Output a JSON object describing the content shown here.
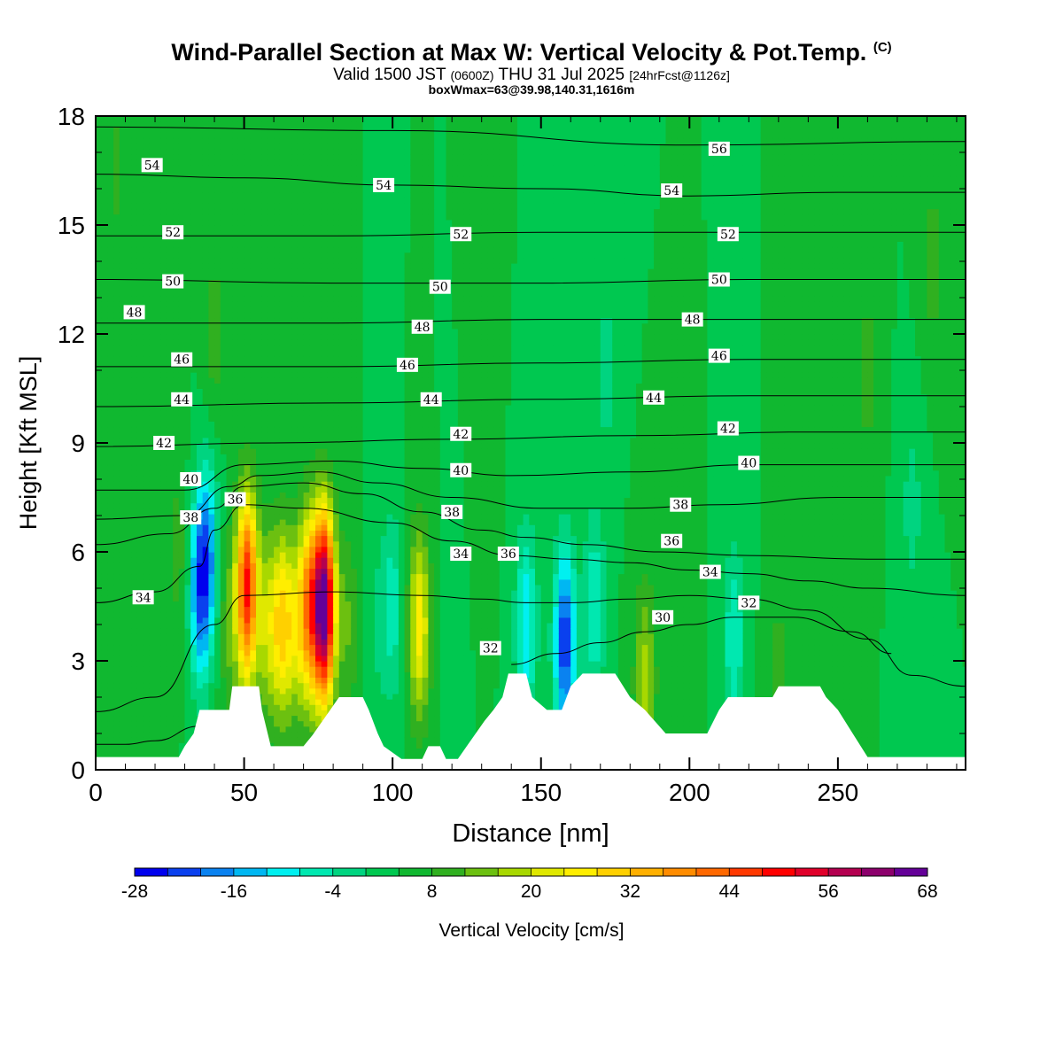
{
  "header": {
    "title": "Wind-Parallel Section at Max W: Vertical Velocity & Pot.Temp.",
    "copyright": "(C)",
    "valid_prefix": "Valid 1500 JST",
    "utc": "(0600Z)",
    "valid_date": "THU 31 Jul 2025",
    "forecast": "[24hrFcst@1126z]",
    "box_info": "boxWmax=63@39.98,140.31,1616m"
  },
  "chart_data": {
    "type": "heatmap",
    "title": "Wind-Parallel Section at Max W: Vertical Velocity & Pot.Temp.",
    "xlabel": "Distance [nm]",
    "ylabel": "Height [Kft MSL]",
    "xlim": [
      0,
      293
    ],
    "ylim": [
      0,
      18
    ],
    "x_ticks": [
      0,
      50,
      100,
      150,
      200,
      250
    ],
    "y_ticks": [
      0,
      3,
      6,
      9,
      12,
      15,
      18
    ],
    "colorbar": {
      "label": "Vertical Velocity [cm/s]",
      "tick_labels": [
        "-28",
        "-16",
        "-4",
        "8",
        "20",
        "32",
        "44",
        "56",
        "68"
      ],
      "levels": [
        -28,
        -24,
        -20,
        -16,
        -12,
        -8,
        -4,
        0,
        4,
        8,
        12,
        16,
        20,
        24,
        28,
        32,
        36,
        40,
        44,
        48,
        52,
        56,
        60,
        64,
        68
      ],
      "colors": [
        "#0000ee",
        "#0a40ee",
        "#0a82f0",
        "#00b7f2",
        "#00f0f0",
        "#00e8b0",
        "#00d480",
        "#00c850",
        "#10b830",
        "#30b020",
        "#6cc010",
        "#a8d800",
        "#e0e800",
        "#ffee00",
        "#ffd000",
        "#ffb000",
        "#ff8c00",
        "#ff6800",
        "#ff3800",
        "#ff0000",
        "#e0002a",
        "#b40050",
        "#8c006c",
        "#640098"
      ]
    },
    "w_cells": [
      {
        "x": 7,
        "z": 16.5,
        "w": 5
      },
      {
        "x": 20,
        "z": 10.0,
        "w": 4
      },
      {
        "x": 28,
        "z": 6.0,
        "w": 6
      },
      {
        "x": 38,
        "z": 6.0,
        "w": -16
      },
      {
        "x": 35,
        "z": 5.0,
        "w": -22
      },
      {
        "x": 40,
        "z": 12.0,
        "w": 6
      },
      {
        "x": 45,
        "z": 4.0,
        "w": 8
      },
      {
        "x": 51,
        "z": 5.0,
        "w": 45
      },
      {
        "x": 58,
        "z": 4.0,
        "w": 14
      },
      {
        "x": 63,
        "z": 4.0,
        "w": 24
      },
      {
        "x": 68,
        "z": 4.0,
        "w": 12
      },
      {
        "x": 72,
        "z": 4.5,
        "w": 30
      },
      {
        "x": 77,
        "z": 4.5,
        "w": 63
      },
      {
        "x": 85,
        "z": 4.0,
        "w": 8
      },
      {
        "x": 95,
        "z": 4.0,
        "w": -4
      },
      {
        "x": 100,
        "z": 4.5,
        "w": -10
      },
      {
        "x": 109,
        "z": 4.0,
        "w": 22
      },
      {
        "x": 120,
        "z": 4.5,
        "w": -4
      },
      {
        "x": 130,
        "z": 8.0,
        "w": 4
      },
      {
        "x": 145,
        "z": 4.0,
        "w": -16
      },
      {
        "x": 158,
        "z": 3.5,
        "w": -28
      },
      {
        "x": 168,
        "z": 4.5,
        "w": -12
      },
      {
        "x": 172,
        "z": 11.0,
        "w": -6
      },
      {
        "x": 185,
        "z": 2.5,
        "w": 14
      },
      {
        "x": 198,
        "z": 2.8,
        "w": 4
      },
      {
        "x": 215,
        "z": 3.6,
        "w": -12
      },
      {
        "x": 230,
        "z": 2.5,
        "w": 6
      },
      {
        "x": 250,
        "z": 2.5,
        "w": 2
      },
      {
        "x": 275,
        "z": 7.2,
        "w": -6
      },
      {
        "x": 282,
        "z": 14.0,
        "w": 6
      },
      {
        "x": 260,
        "z": 11.0,
        "w": 6
      }
    ],
    "terrain": [
      [
        0,
        0.35
      ],
      [
        28,
        0.35
      ],
      [
        30,
        0.65
      ],
      [
        33,
        1.0
      ],
      [
        35,
        1.65
      ],
      [
        45,
        1.65
      ],
      [
        46,
        2.3
      ],
      [
        55,
        2.3
      ],
      [
        56,
        1.65
      ],
      [
        59,
        0.65
      ],
      [
        70,
        0.65
      ],
      [
        73,
        0.95
      ],
      [
        76,
        1.3
      ],
      [
        79,
        1.65
      ],
      [
        82,
        2.0
      ],
      [
        90,
        2.0
      ],
      [
        92,
        1.65
      ],
      [
        95,
        1.0
      ],
      [
        97,
        0.65
      ],
      [
        103,
        0.3
      ],
      [
        110,
        0.3
      ],
      [
        112,
        0.65
      ],
      [
        116,
        0.65
      ],
      [
        118,
        0.3
      ],
      [
        122,
        0.3
      ],
      [
        125,
        0.65
      ],
      [
        128,
        1.0
      ],
      [
        131,
        1.35
      ],
      [
        134,
        1.65
      ],
      [
        137,
        2.0
      ],
      [
        139,
        2.65
      ],
      [
        145,
        2.65
      ],
      [
        147,
        2.0
      ],
      [
        152,
        1.65
      ],
      [
        157,
        1.65
      ],
      [
        160,
        2.3
      ],
      [
        164,
        2.65
      ],
      [
        175,
        2.65
      ],
      [
        180,
        2.0
      ],
      [
        185,
        1.65
      ],
      [
        192,
        1.0
      ],
      [
        206,
        1.0
      ],
      [
        210,
        1.65
      ],
      [
        213,
        2.0
      ],
      [
        228,
        2.0
      ],
      [
        230,
        2.3
      ],
      [
        244,
        2.3
      ],
      [
        246,
        2.0
      ],
      [
        250,
        1.65
      ],
      [
        255,
        1.0
      ],
      [
        260,
        0.35
      ],
      [
        293,
        0.35
      ]
    ],
    "theta_contours": [
      {
        "value": 30,
        "points": [
          [
            0,
            0.7
          ],
          [
            10,
            0.7
          ],
          [
            20,
            0.8
          ],
          [
            35,
            1.2
          ]
        ]
      },
      {
        "value": 30,
        "points": [
          [
            140,
            2.9
          ],
          [
            155,
            3.2
          ],
          [
            170,
            3.5
          ],
          [
            185,
            3.8
          ],
          [
            200,
            4.0
          ],
          [
            215,
            4.2
          ],
          [
            235,
            4.2
          ],
          [
            255,
            3.8
          ],
          [
            268,
            3.2
          ]
        ]
      },
      {
        "value": 32,
        "points": [
          [
            0,
            1.6
          ],
          [
            20,
            2.0
          ],
          [
            40,
            4.0
          ],
          [
            50,
            4.8
          ],
          [
            80,
            4.9
          ],
          [
            110,
            4.8
          ],
          [
            130,
            4.7
          ],
          [
            145,
            4.6
          ],
          [
            160,
            4.6
          ],
          [
            180,
            4.7
          ],
          [
            200,
            4.8
          ],
          [
            220,
            4.7
          ],
          [
            240,
            4.4
          ],
          [
            260,
            3.6
          ],
          [
            275,
            2.6
          ],
          [
            293,
            2.3
          ]
        ]
      },
      {
        "value": 34,
        "points": [
          [
            0,
            4.6
          ],
          [
            20,
            4.9
          ],
          [
            35,
            5.6
          ],
          [
            40,
            6.6
          ],
          [
            50,
            7.3
          ],
          [
            70,
            7.2
          ],
          [
            100,
            6.8
          ],
          [
            120,
            6.3
          ],
          [
            140,
            5.9
          ],
          [
            160,
            5.8
          ],
          [
            180,
            5.7
          ],
          [
            200,
            5.5
          ],
          [
            220,
            5.4
          ],
          [
            240,
            5.2
          ],
          [
            260,
            5.0
          ],
          [
            293,
            4.8
          ]
        ]
      },
      {
        "value": 36,
        "points": [
          [
            0,
            6.2
          ],
          [
            25,
            6.5
          ],
          [
            40,
            7.2
          ],
          [
            50,
            7.8
          ],
          [
            70,
            7.9
          ],
          [
            90,
            7.6
          ],
          [
            110,
            7.1
          ],
          [
            130,
            6.6
          ],
          [
            145,
            6.4
          ],
          [
            165,
            6.2
          ],
          [
            190,
            6.0
          ],
          [
            220,
            5.9
          ],
          [
            260,
            5.8
          ],
          [
            293,
            5.8
          ]
        ]
      },
      {
        "value": 38,
        "points": [
          [
            0,
            6.9
          ],
          [
            30,
            7.0
          ],
          [
            45,
            7.8
          ],
          [
            55,
            8.1
          ],
          [
            75,
            8.2
          ],
          [
            95,
            7.9
          ],
          [
            120,
            7.5
          ],
          [
            150,
            7.2
          ],
          [
            180,
            7.2
          ],
          [
            210,
            7.3
          ],
          [
            250,
            7.5
          ],
          [
            293,
            7.5
          ]
        ]
      },
      {
        "value": 40,
        "points": [
          [
            0,
            7.7
          ],
          [
            30,
            7.7
          ],
          [
            50,
            8.4
          ],
          [
            80,
            8.5
          ],
          [
            110,
            8.3
          ],
          [
            140,
            8.1
          ],
          [
            180,
            8.2
          ],
          [
            220,
            8.4
          ],
          [
            260,
            8.4
          ],
          [
            293,
            8.4
          ]
        ]
      },
      {
        "value": 42,
        "points": [
          [
            0,
            8.9
          ],
          [
            60,
            9.0
          ],
          [
            120,
            9.1
          ],
          [
            180,
            9.2
          ],
          [
            240,
            9.3
          ],
          [
            293,
            9.3
          ]
        ]
      },
      {
        "value": 44,
        "points": [
          [
            0,
            10.0
          ],
          [
            80,
            10.1
          ],
          [
            150,
            10.2
          ],
          [
            220,
            10.3
          ],
          [
            293,
            10.3
          ]
        ]
      },
      {
        "value": 46,
        "points": [
          [
            0,
            11.1
          ],
          [
            80,
            11.1
          ],
          [
            150,
            11.2
          ],
          [
            220,
            11.3
          ],
          [
            293,
            11.3
          ]
        ]
      },
      {
        "value": 48,
        "points": [
          [
            0,
            12.3
          ],
          [
            80,
            12.3
          ],
          [
            150,
            12.4
          ],
          [
            220,
            12.4
          ],
          [
            293,
            12.4
          ]
        ]
      },
      {
        "value": 50,
        "points": [
          [
            0,
            13.5
          ],
          [
            80,
            13.4
          ],
          [
            150,
            13.4
          ],
          [
            220,
            13.5
          ],
          [
            293,
            13.5
          ]
        ]
      },
      {
        "value": 52,
        "points": [
          [
            0,
            14.7
          ],
          [
            80,
            14.7
          ],
          [
            150,
            14.8
          ],
          [
            220,
            14.8
          ],
          [
            293,
            14.8
          ]
        ]
      },
      {
        "value": 54,
        "points": [
          [
            0,
            16.4
          ],
          [
            50,
            16.3
          ],
          [
            100,
            16.1
          ],
          [
            150,
            16.0
          ],
          [
            200,
            15.8
          ],
          [
            250,
            15.9
          ],
          [
            293,
            15.9
          ]
        ]
      },
      {
        "value": 56,
        "points": [
          [
            0,
            17.7
          ],
          [
            100,
            17.6
          ],
          [
            200,
            17.2
          ],
          [
            293,
            17.3
          ]
        ]
      }
    ],
    "contour_labels": [
      {
        "text": "54",
        "x": 19,
        "z": 16.65
      },
      {
        "text": "54",
        "x": 97,
        "z": 16.1
      },
      {
        "text": "54",
        "x": 194,
        "z": 15.95
      },
      {
        "text": "56",
        "x": 210,
        "z": 17.1
      },
      {
        "text": "52",
        "x": 26,
        "z": 14.8
      },
      {
        "text": "52",
        "x": 123,
        "z": 14.75
      },
      {
        "text": "52",
        "x": 213,
        "z": 14.75
      },
      {
        "text": "50",
        "x": 26,
        "z": 13.45
      },
      {
        "text": "50",
        "x": 116,
        "z": 13.3
      },
      {
        "text": "50",
        "x": 210,
        "z": 13.5
      },
      {
        "text": "48",
        "x": 13,
        "z": 12.6
      },
      {
        "text": "48",
        "x": 110,
        "z": 12.2
      },
      {
        "text": "48",
        "x": 201,
        "z": 12.4
      },
      {
        "text": "46",
        "x": 29,
        "z": 11.3
      },
      {
        "text": "46",
        "x": 105,
        "z": 11.15
      },
      {
        "text": "46",
        "x": 210,
        "z": 11.4
      },
      {
        "text": "44",
        "x": 29,
        "z": 10.2
      },
      {
        "text": "44",
        "x": 113,
        "z": 10.2
      },
      {
        "text": "44",
        "x": 188,
        "z": 10.25
      },
      {
        "text": "42",
        "x": 23,
        "z": 9.0
      },
      {
        "text": "42",
        "x": 123,
        "z": 9.25
      },
      {
        "text": "42",
        "x": 213,
        "z": 9.4
      },
      {
        "text": "40",
        "x": 32,
        "z": 8.0
      },
      {
        "text": "40",
        "x": 123,
        "z": 8.25
      },
      {
        "text": "40",
        "x": 220,
        "z": 8.45
      },
      {
        "text": "38",
        "x": 32,
        "z": 6.95
      },
      {
        "text": "38",
        "x": 120,
        "z": 7.1
      },
      {
        "text": "38",
        "x": 197,
        "z": 7.3
      },
      {
        "text": "36",
        "x": 47,
        "z": 7.45
      },
      {
        "text": "36",
        "x": 139,
        "z": 5.95
      },
      {
        "text": "36",
        "x": 194,
        "z": 6.3
      },
      {
        "text": "34",
        "x": 16,
        "z": 4.75
      },
      {
        "text": "34",
        "x": 123,
        "z": 5.95
      },
      {
        "text": "34",
        "x": 207,
        "z": 5.45
      },
      {
        "text": "32",
        "x": 133,
        "z": 3.35
      },
      {
        "text": "32",
        "x": 220,
        "z": 4.6
      },
      {
        "text": "30",
        "x": 191,
        "z": 4.2
      }
    ]
  }
}
